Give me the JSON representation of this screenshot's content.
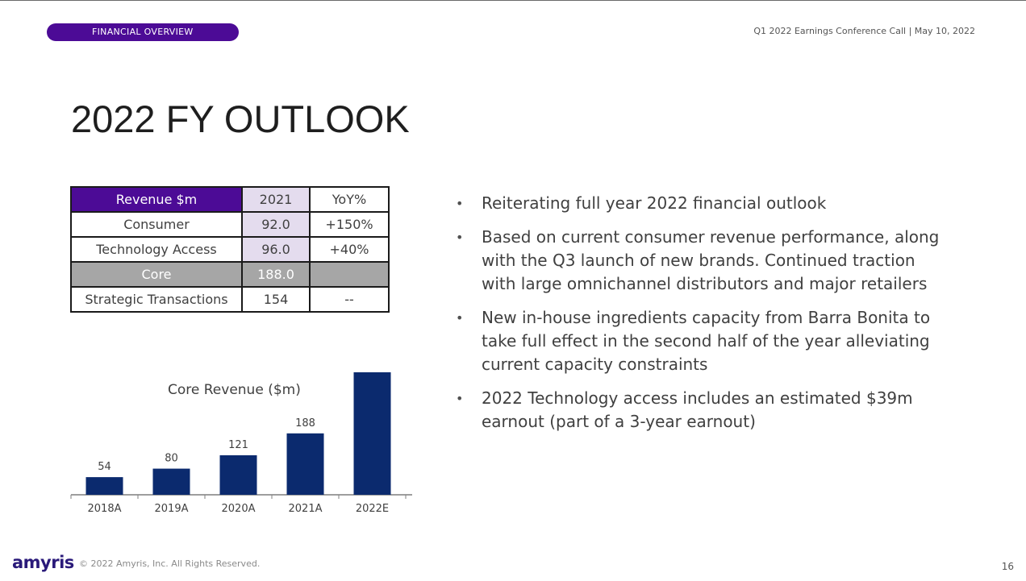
{
  "header": {
    "section_label": "FINANCIAL OVERVIEW",
    "meta": "Q1 2022 Earnings Conference Call | May 10, 2022"
  },
  "page_title": "2022 FY OUTLOOK",
  "table": {
    "headers": [
      "Revenue $m",
      "2021",
      "YoY%"
    ],
    "rows": [
      [
        "Consumer",
        "92.0",
        "+150%"
      ],
      [
        "Technology Access",
        "96.0",
        "+40%"
      ],
      [
        "Core",
        "188.0",
        ""
      ],
      [
        "Strategic Transactions",
        "154",
        "--"
      ]
    ]
  },
  "chart_data": {
    "type": "bar",
    "title": "Core Revenue ($m)",
    "categories": [
      "2018A",
      "2019A",
      "2020A",
      "2021A",
      "2022E"
    ],
    "values": [
      54,
      80,
      121,
      188,
      375
    ],
    "data_labels": [
      "54",
      "80",
      "121",
      "188",
      ""
    ],
    "bar_color": "#0b2a6e",
    "xlabel": "",
    "ylabel": "",
    "ylim": [
      0,
      375
    ]
  },
  "bullets": [
    "Reiterating full year 2022 financial outlook",
    "Based on current consumer revenue performance, along with the Q3 launch of new brands. Continued traction with large omnichannel distributors and major retailers",
    "New in-house ingredients capacity from Barra Bonita to take full effect in the second half of the year alleviating current capacity constraints",
    "2022 Technology access includes an estimated $39m earnout (part of a 3-year earnout)"
  ],
  "footer": {
    "logo": "amyris",
    "copyright": "© 2022 Amyris, Inc. All Rights Reserved.",
    "page_number": "16"
  },
  "colors": {
    "brand_purple": "#4c0b96",
    "highlight_lavender": "#e4dcee",
    "core_row_gray": "#a6a6a6"
  }
}
